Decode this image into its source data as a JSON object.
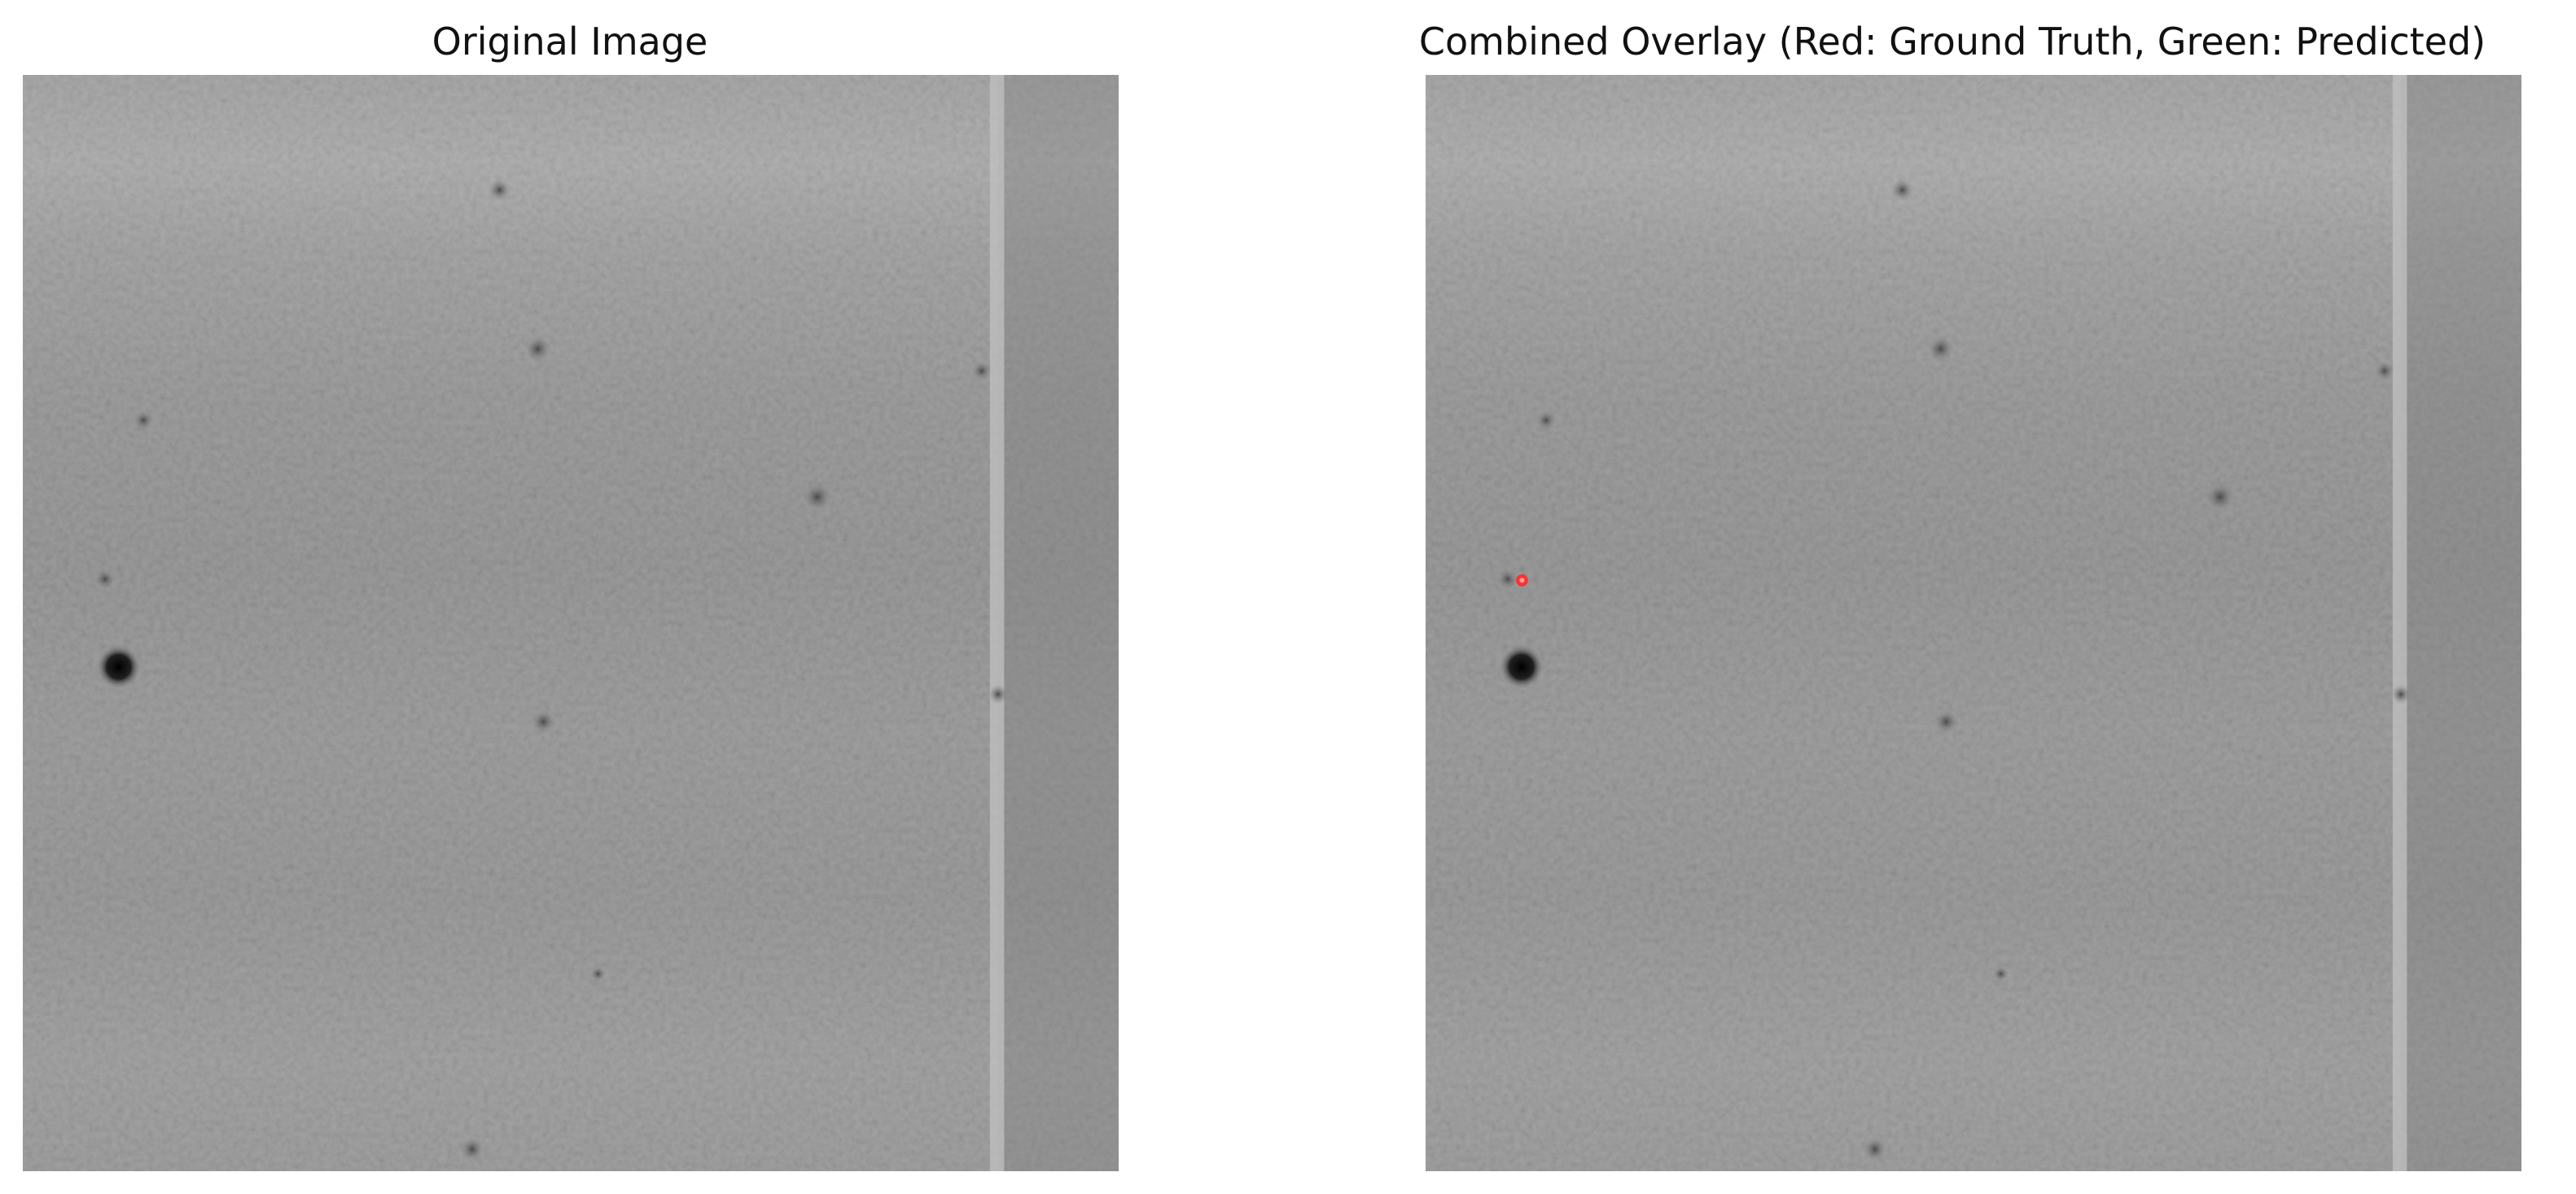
{
  "panels": {
    "left": {
      "title": "Original Image"
    },
    "right": {
      "title": "Combined Overlay (Red: Ground Truth, Green: Predicted)"
    }
  },
  "colors": {
    "ground_truth_marker": "#ff2a2a",
    "predicted_marker": "#22cc22",
    "background": "#ffffff"
  }
}
